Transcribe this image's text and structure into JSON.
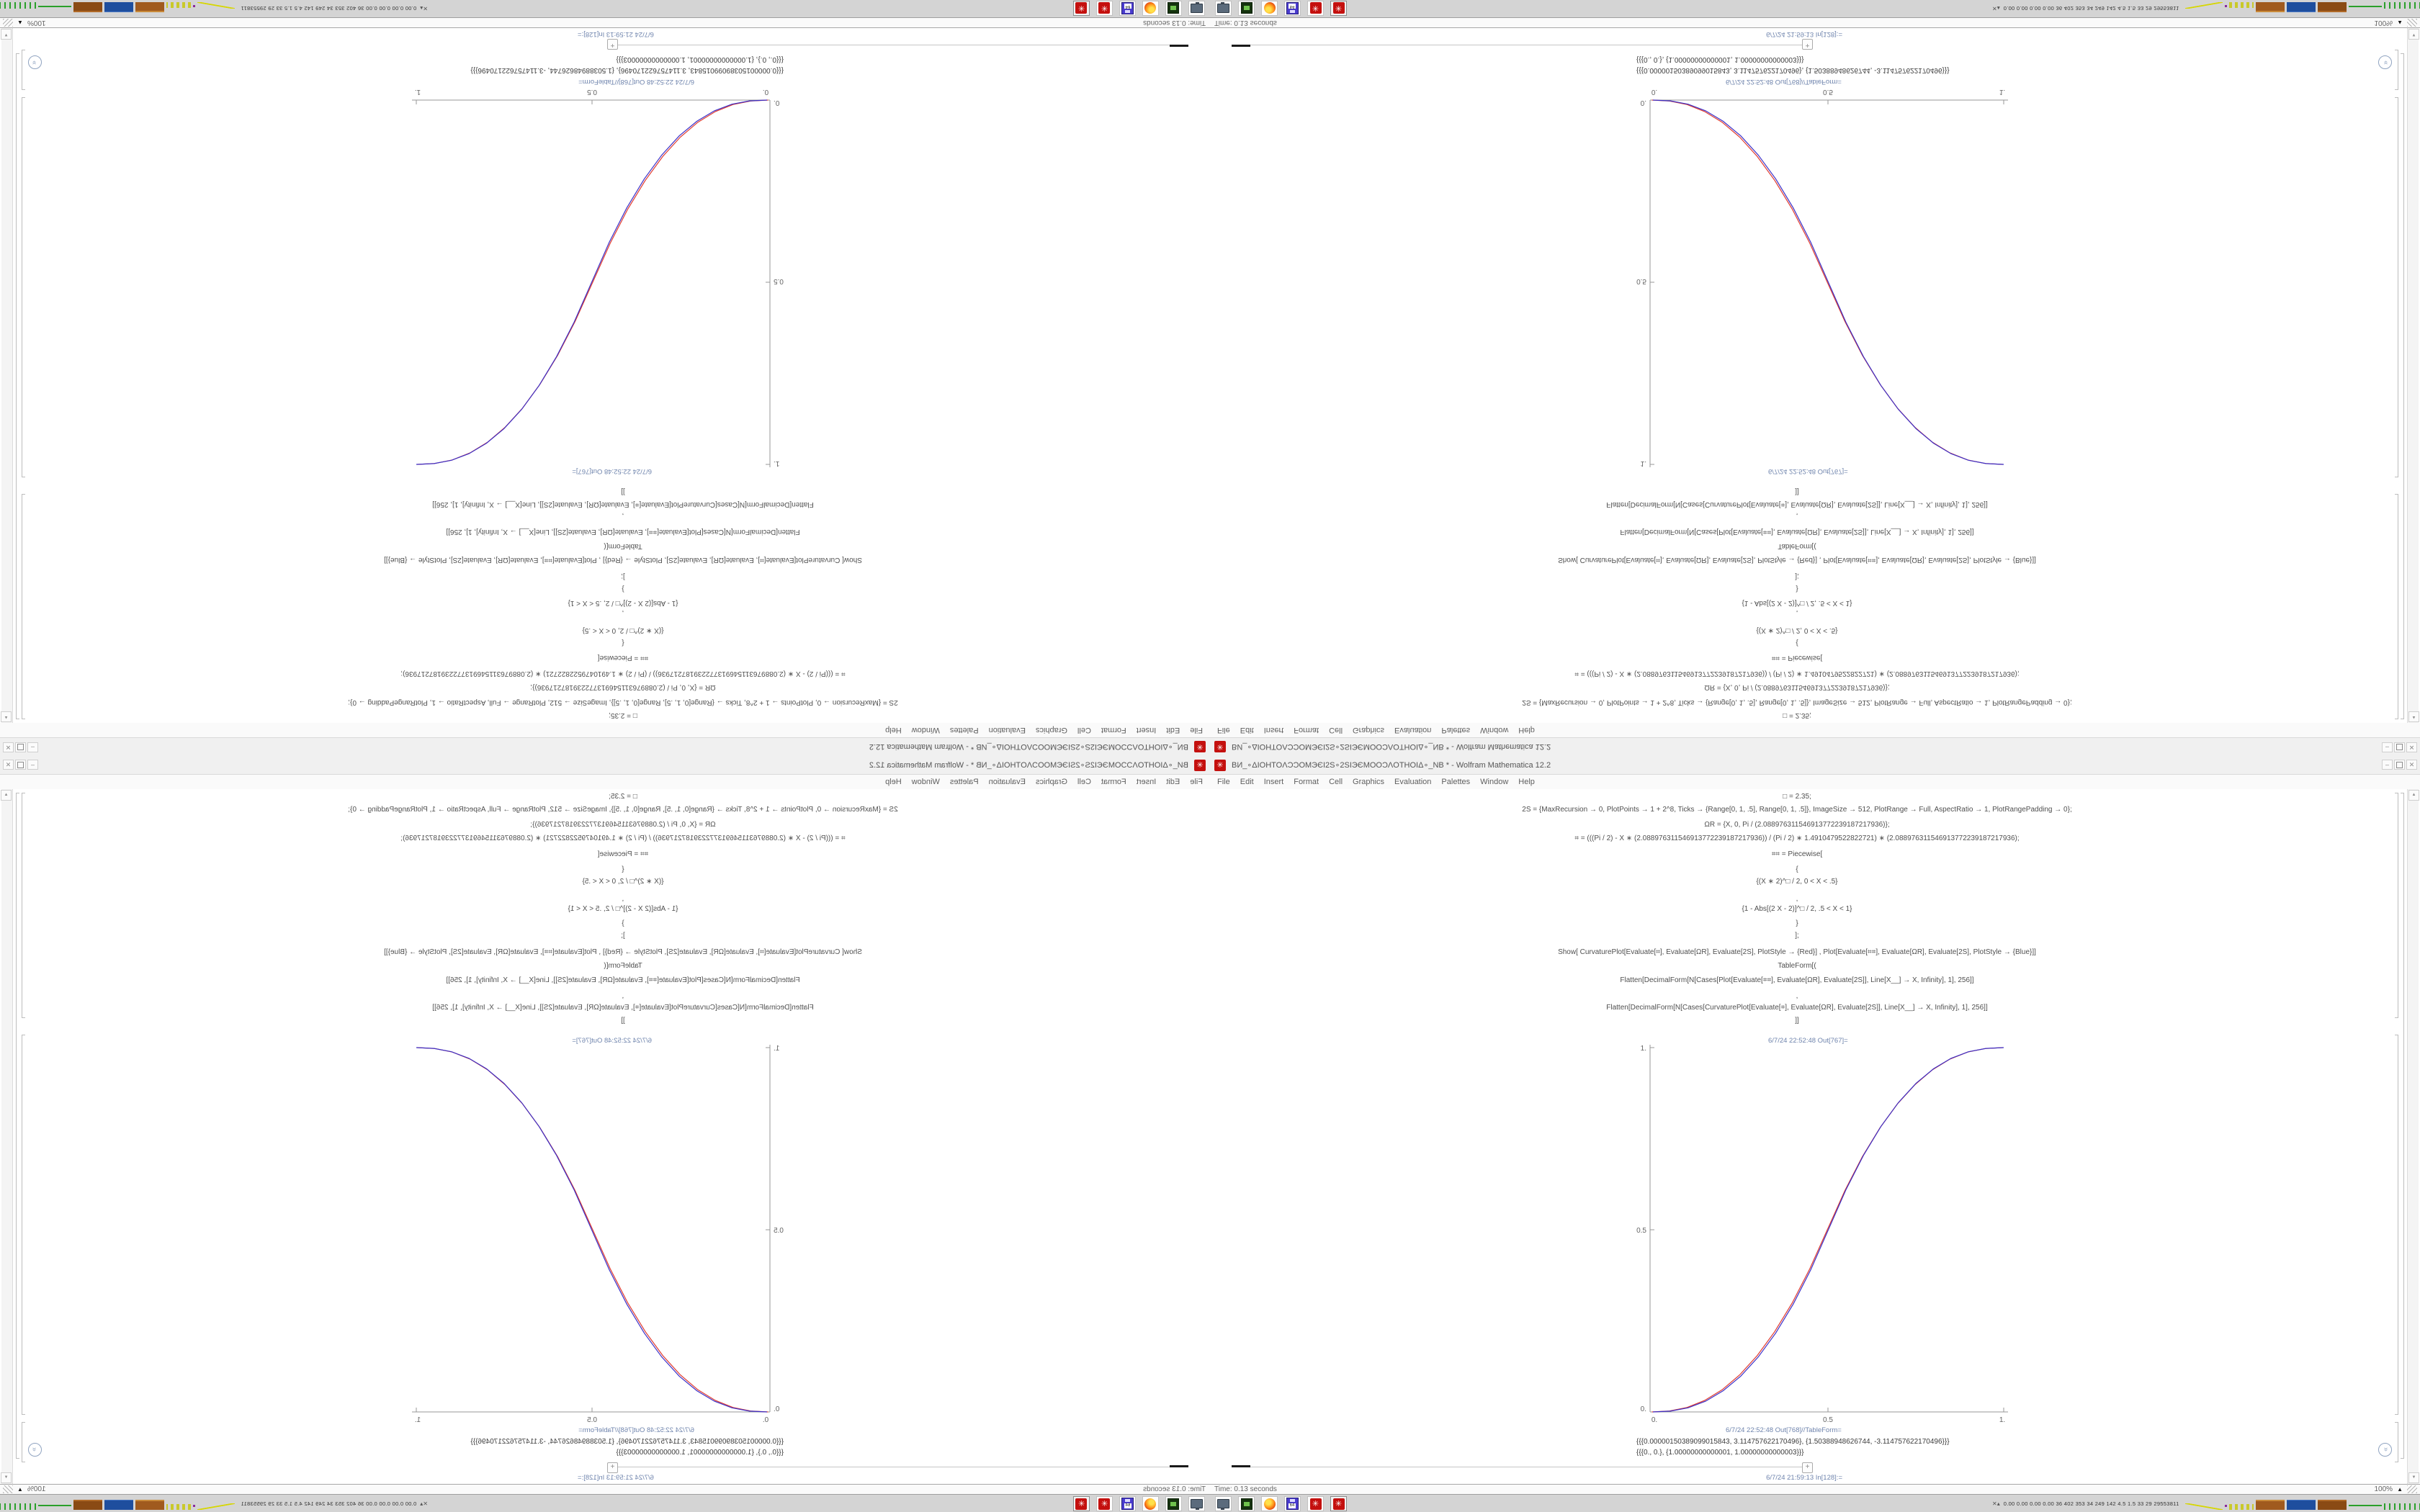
{
  "window": {
    "title": "ВИ_∘ΔIOHTOΛƆƆOMЭЄI2S∘2SIЭЄMOOƆΛOTHOIΔ∘_NB * - Wolfram Mathematica 12.2",
    "buttons": {
      "minimize": "–",
      "maximize": "",
      "close": "✕"
    },
    "menu": [
      "File",
      "Edit",
      "Insert",
      "Format",
      "Cell",
      "Graphics",
      "Evaluation",
      "Palettes",
      "Window",
      "Help"
    ],
    "status_left": "Time: 0.13 seconds",
    "zoom_level": "100%"
  },
  "cells": {
    "input_lines": [
      "□ = 2.35;",
      "2S = {MaxRecursion → 0, PlotPoints → 1 + 2^8, Ticks → {Range[0, 1, .5], Range[0, 1, .5]}, ImageSize → 512, PlotRange → Full, AspectRatio → 1, PlotRangePadding → 0};",
      "ΩR = {X, 0, Pi / (2.088976311546913772239187217936)};",
      "⌗ = (((Pi / 2) - X ∗ (2.088976311546913772239187217936)) / (Pi / 2) ∗ 1.4910479522822721) ∗ (2.088976311546913772239187217936);",
      "⌗⌗ = Piecewise[",
      "{",
      "{(X ∗ 2)^□ / 2, 0 < X < .5}",
      ",",
      "{1 - Abs[(2 X - 2)]^□ / 2, .5 < X < 1}",
      "}",
      "];",
      "Show[  CurvaturePlot[Evaluate[⌗], Evaluate[ΩR], Evaluate[2S], PlotStyle → {Red}]  ,  Plot[Evaluate[⌗⌗], Evaluate[ΩR], Evaluate[2S], PlotStyle → {Blue}]]",
      "TableForm[(",
      "Flatten[DecimalForm[N[Cases[Plot[Evaluate[⌗⌗], Evaluate[ΩR], Evaluate[2S]], Line[X__] → X, Infinity], 1], 256]]",
      ",",
      "Flatten[DecimalForm[N[Cases[CurvaturePlot[Evaluate[⌗], Evaluate[ΩR], Evaluate[2S]], Line[X__] → X, Infinity], 1], 256]]",
      "]]"
    ],
    "out_label_plot": "6/7/24 22:52:48 Out[767]=",
    "out_label_table": "6/7/24 22:52:48 Out[768]//TableForm=",
    "table_rows": [
      "{{{0.00000150389099015843, 3.114757622170496}, {1.50388948626744, -3.114757622170496}}}",
      "{{{0., 0.}, {1.00000000000001, 1.00000000000003}}}"
    ],
    "next_cell_label": "6/7/24 21:59:13 In[128]:=",
    "plus_label": "+"
  },
  "taskbar": {
    "icons": [
      "system-monitor-app",
      "package-manager-app",
      "firefox-app",
      "vice-x64-app",
      "mathematica-kernel",
      "mathematica-frontend-active"
    ],
    "floppy_label": "64",
    "sysmon_glyph": "✕▴",
    "monitor_text": "0.00 0.00 0.00 0.00  36  402  353  34  249  142  4.5  1.5  33  29  29553811"
  },
  "chart_data": {
    "type": "line",
    "title": "",
    "xlabel": "",
    "ylabel": "",
    "xlim": [
      0,
      1
    ],
    "ylim": [
      0,
      1
    ],
    "grid": false,
    "legend_position": "none",
    "x_tick_labels": [
      "0.",
      "0.5",
      "1."
    ],
    "y_tick_labels": [
      "0.",
      "0.5",
      "1."
    ],
    "series": [
      {
        "name": "curvature_red",
        "color": "#e03a2f",
        "points": [
          [
            0,
            0
          ],
          [
            0.05,
            0.00251
          ],
          [
            0.1,
            0.01233
          ],
          [
            0.15,
            0.03135
          ],
          [
            0.2,
            0.06075
          ],
          [
            0.25,
            0.10155
          ],
          [
            0.3,
            0.1544
          ],
          [
            0.35,
            0.22015
          ],
          [
            0.4,
            0.2993
          ],
          [
            0.45,
            0.3924
          ],
          [
            0.5,
            0.5
          ],
          [
            0.55,
            0.6076
          ],
          [
            0.6,
            0.7007
          ],
          [
            0.65,
            0.77985
          ],
          [
            0.7,
            0.8456
          ],
          [
            0.75,
            0.89845
          ],
          [
            0.8,
            0.93925
          ],
          [
            0.85,
            0.96865
          ],
          [
            0.9,
            0.98767
          ],
          [
            0.95,
            0.99749
          ],
          [
            1,
            1
          ]
        ]
      },
      {
        "name": "plot_blue",
        "color": "#3b30c8",
        "points": [
          [
            0,
            0
          ],
          [
            0.05,
            0.00223
          ],
          [
            0.1,
            0.0112
          ],
          [
            0.15,
            0.0295
          ],
          [
            0.2,
            0.05805
          ],
          [
            0.25,
            0.09805
          ],
          [
            0.3,
            0.15055
          ],
          [
            0.35,
            0.21625
          ],
          [
            0.4,
            0.29595
          ],
          [
            0.45,
            0.39035
          ],
          [
            0.5,
            0.5
          ],
          [
            0.55,
            0.60965
          ],
          [
            0.6,
            0.70405
          ],
          [
            0.65,
            0.78375
          ],
          [
            0.7,
            0.84945
          ],
          [
            0.75,
            0.90195
          ],
          [
            0.8,
            0.94195
          ],
          [
            0.85,
            0.9705
          ],
          [
            0.9,
            0.9888
          ],
          [
            0.95,
            0.99777
          ],
          [
            1,
            1
          ]
        ]
      }
    ]
  }
}
